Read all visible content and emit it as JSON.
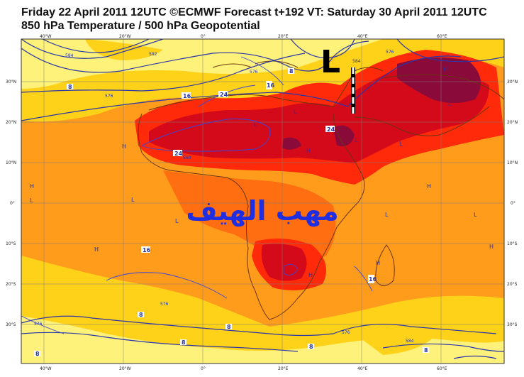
{
  "header": {
    "line1": "Friday 22 April 2011 12UTC ©ECMWF Forecast t+192 VT: Saturday 30 April 2011 12UTC",
    "line2": "850 hPa Temperature / 500 hPa Geopotential"
  },
  "axes": {
    "lon_labels": [
      "40°W",
      "20°W",
      "0°",
      "20°E",
      "40°E",
      "60°E"
    ],
    "lat_labels": [
      "30°N",
      "20°N",
      "10°N",
      "0°",
      "10°S",
      "20°S",
      "30°S"
    ]
  },
  "annotation": {
    "arabic_text": "مهب الهيف",
    "low_marker": "L",
    "color": "#1f2ee0"
  },
  "temp_labels": [
    "8",
    "16",
    "24",
    "24",
    "24",
    "16",
    "8",
    "16",
    "16",
    "8",
    "8",
    "8",
    "8",
    "8",
    "8"
  ],
  "geo_labels": [
    "584",
    "592",
    "576",
    "576",
    "584",
    "560",
    "576",
    "576",
    "576",
    "576",
    "584"
  ],
  "pressure_marks": [
    "H",
    "H",
    "H",
    "H",
    "H",
    "H",
    "H",
    "H",
    "H",
    "L",
    "L",
    "L",
    "L",
    "L",
    "L",
    "L",
    "L",
    "L",
    "L"
  ],
  "colors": {
    "pale": "#fff27a",
    "yellow": "#ffd21a",
    "orange": "#ff9c1c",
    "orange_deep": "#ff6e10",
    "red": "#ff2a0a",
    "crimson": "#d40a1a",
    "maroon": "#8a0a3a",
    "contour": "#2b35a8"
  }
}
